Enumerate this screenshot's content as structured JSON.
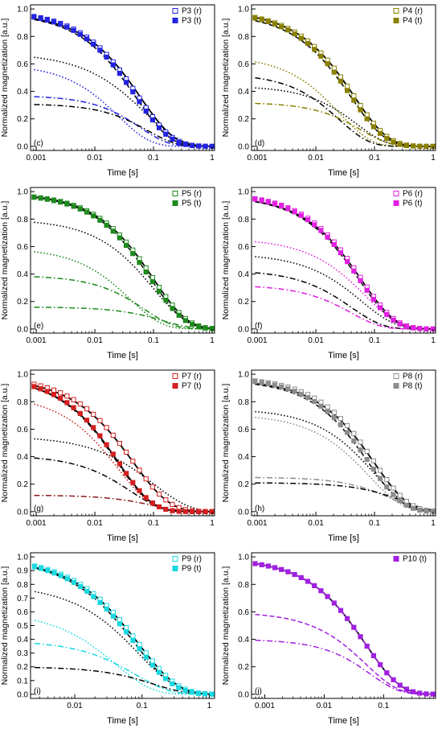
{
  "chart_data": [
    {
      "type": "line",
      "label": "(c)",
      "xlabel": "Time [s]",
      "ylabel": "Normalized magnetization [a.u.]",
      "xscale": "log",
      "xlim": [
        0.0008,
        1.1
      ],
      "ylim": [
        -0.03,
        1.03
      ],
      "xticks": [
        "0.001",
        "0.01",
        "0.1",
        "1"
      ],
      "yticks": [
        "0.0",
        "0.2",
        "0.4",
        "0.6",
        "0.8",
        "1.0"
      ],
      "color": "#2323e0",
      "legend_placement": "top-right",
      "legend": [
        "P3 (r)",
        "P3 (t)"
      ],
      "curves": [
        {
          "style": "solid",
          "color": "#000000",
          "amp": 0.97,
          "tau": 0.06,
          "beta": 0.75
        },
        {
          "style": "dash",
          "color": "#000000",
          "amp": 0.97,
          "tau": 0.05,
          "beta": 0.75
        },
        {
          "style": "dot",
          "color": "#000000",
          "amp": 0.68,
          "tau": 0.07,
          "beta": 0.7
        },
        {
          "style": "dot",
          "color": "#2323e0",
          "amp": 0.6,
          "tau": 0.025,
          "beta": 0.8
        },
        {
          "style": "dashdot",
          "color": "#2323e0",
          "amp": 0.37,
          "tau": 0.06,
          "beta": 0.9
        },
        {
          "style": "dashdot",
          "color": "#000000",
          "amp": 0.31,
          "tau": 0.08,
          "beta": 0.9
        }
      ],
      "series": [
        {
          "name": "P3 (r)",
          "marker": "open-square",
          "amp": 0.99,
          "tau": 0.055,
          "beta": 0.75
        },
        {
          "name": "P3 (t)",
          "marker": "filled-square",
          "amp": 0.99,
          "tau": 0.05,
          "beta": 0.75
        }
      ]
    },
    {
      "type": "line",
      "label": "(d)",
      "xlabel": "Time [s]",
      "ylabel": "Normalized magnetization [a.u.]",
      "xscale": "log",
      "xlim": [
        0.0008,
        1.1
      ],
      "ylim": [
        -0.03,
        1.03
      ],
      "xticks": [
        "0.001",
        "0.01",
        "0.1",
        "1"
      ],
      "yticks": [
        "0.0",
        "0.2",
        "0.4",
        "0.6",
        "0.8",
        "1.0"
      ],
      "color": "#8a8000",
      "legend_placement": "top-right",
      "legend": [
        "P4 (r)",
        "P4 (t)"
      ],
      "curves": [
        {
          "style": "solid",
          "color": "#000000",
          "amp": 0.99,
          "tau": 0.045,
          "beta": 0.75
        },
        {
          "style": "dash",
          "color": "#000000",
          "amp": 0.97,
          "tau": 0.04,
          "beta": 0.75
        },
        {
          "style": "dot",
          "color": "#8a8000",
          "amp": 0.66,
          "tau": 0.025,
          "beta": 0.8
        },
        {
          "style": "dashdot",
          "color": "#000000",
          "amp": 0.53,
          "tau": 0.025,
          "beta": 0.85
        },
        {
          "style": "dot",
          "color": "#000000",
          "amp": 0.44,
          "tau": 0.05,
          "beta": 0.85
        },
        {
          "style": "dashdot",
          "color": "#8a8000",
          "amp": 0.32,
          "tau": 0.06,
          "beta": 0.9
        }
      ],
      "series": [
        {
          "name": "P4 (r)",
          "marker": "open-square",
          "amp": 0.99,
          "tau": 0.045,
          "beta": 0.75
        },
        {
          "name": "P4 (t)",
          "marker": "filled-square",
          "amp": 0.99,
          "tau": 0.04,
          "beta": 0.75
        }
      ]
    },
    {
      "type": "line",
      "label": "(e)",
      "xlabel": "Time [s]",
      "ylabel": "Normalized magnetization [a.u.]",
      "xscale": "log",
      "xlim": [
        0.0008,
        1.1
      ],
      "ylim": [
        -0.03,
        1.03
      ],
      "xticks": [
        "0.001",
        "0.01",
        "0.1",
        "1"
      ],
      "yticks": [
        "0.0",
        "0.2",
        "0.4",
        "0.6",
        "0.8",
        "1.0"
      ],
      "color": "#1e8a1e",
      "legend_placement": "top-right",
      "legend": [
        "P5 (r)",
        "P5 (t)"
      ],
      "curves": [
        {
          "style": "solid",
          "color": "#000000",
          "amp": 0.99,
          "tau": 0.1,
          "beta": 0.75
        },
        {
          "style": "dash",
          "color": "#000000",
          "amp": 0.99,
          "tau": 0.09,
          "beta": 0.75
        },
        {
          "style": "dot",
          "color": "#000000",
          "amp": 0.8,
          "tau": 0.1,
          "beta": 0.75
        },
        {
          "style": "dot",
          "color": "#1e8a1e",
          "amp": 0.59,
          "tau": 0.04,
          "beta": 0.8
        },
        {
          "style": "dashdot",
          "color": "#1e8a1e",
          "amp": 0.39,
          "tau": 0.07,
          "beta": 0.85
        },
        {
          "style": "dashdot",
          "color": "#1e8a1e",
          "amp": 0.16,
          "tau": 0.15,
          "beta": 0.9
        }
      ],
      "series": [
        {
          "name": "P5 (r)",
          "marker": "open-square",
          "amp": 0.99,
          "tau": 0.1,
          "beta": 0.75
        },
        {
          "name": "P5 (t)",
          "marker": "filled-square",
          "amp": 0.99,
          "tau": 0.09,
          "beta": 0.75
        }
      ]
    },
    {
      "type": "line",
      "label": "(f)",
      "xlabel": "Time [s]",
      "ylabel": "Normalized magnetization [a.u.]",
      "xscale": "log",
      "xlim": [
        0.0008,
        1.1
      ],
      "ylim": [
        -0.03,
        1.03
      ],
      "xticks": [
        "0.001",
        "0.01",
        "0.1",
        "1"
      ],
      "yticks": [
        "0.0",
        "0.2",
        "0.4",
        "0.6",
        "0.8",
        "1.0"
      ],
      "color": "#e020e0",
      "legend_placement": "top-right",
      "legend": [
        "P6 (r)",
        "P6 (t)"
      ],
      "curves": [
        {
          "style": "solid",
          "color": "#000000",
          "amp": 0.97,
          "tau": 0.06,
          "beta": 0.75
        },
        {
          "style": "dash",
          "color": "#000000",
          "amp": 0.97,
          "tau": 0.055,
          "beta": 0.75
        },
        {
          "style": "dot",
          "color": "#e020e0",
          "amp": 0.66,
          "tau": 0.07,
          "beta": 0.75
        },
        {
          "style": "dot",
          "color": "#000000",
          "amp": 0.55,
          "tau": 0.06,
          "beta": 0.75
        },
        {
          "style": "dashdot",
          "color": "#000000",
          "amp": 0.43,
          "tau": 0.04,
          "beta": 0.8
        },
        {
          "style": "dashdot",
          "color": "#e020e0",
          "amp": 0.32,
          "tau": 0.04,
          "beta": 0.85
        }
      ],
      "series": [
        {
          "name": "P6 (r)",
          "marker": "open-square",
          "amp": 0.99,
          "tau": 0.06,
          "beta": 0.75
        },
        {
          "name": "P6 (t)",
          "marker": "filled-square",
          "amp": 0.99,
          "tau": 0.055,
          "beta": 0.75
        }
      ]
    },
    {
      "type": "line",
      "label": "(g)",
      "xlabel": "Time [s]",
      "ylabel": "Normalized magnetization [a.u.]",
      "xscale": "log",
      "xlim": [
        0.0008,
        1.1
      ],
      "ylim": [
        -0.03,
        1.03
      ],
      "xticks": [
        "0.001",
        "0.01",
        "0.1",
        "1"
      ],
      "yticks": [
        "0.0",
        "0.2",
        "0.4",
        "0.6",
        "0.8",
        "1.0"
      ],
      "color": "#d42020",
      "legend_placement": "top-right",
      "legend": [
        "P7 (r)",
        "P7 (t)"
      ],
      "curves": [
        {
          "style": "solid",
          "color": "#000000",
          "amp": 0.98,
          "tau": 0.045,
          "beta": 0.7
        },
        {
          "style": "solid",
          "color": "#000000",
          "amp": 0.98,
          "tau": 0.025,
          "beta": 0.75
        },
        {
          "style": "dash",
          "color": "#000000",
          "amp": 0.98,
          "tau": 0.024,
          "beta": 0.75
        },
        {
          "style": "dot",
          "color": "#d42020",
          "amp": 0.85,
          "tau": 0.025,
          "beta": 0.75
        },
        {
          "style": "dot",
          "color": "#000000",
          "amp": 0.55,
          "tau": 0.1,
          "beta": 0.7
        },
        {
          "style": "dashdot",
          "color": "#000000",
          "amp": 0.41,
          "tau": 0.04,
          "beta": 0.8
        },
        {
          "style": "dashdot",
          "color": "#8b1a1a",
          "amp": 0.12,
          "tau": 0.1,
          "beta": 0.9
        }
      ],
      "series": [
        {
          "name": "P7 (r)",
          "marker": "open-square",
          "amp": 0.99,
          "tau": 0.045,
          "beta": 0.7
        },
        {
          "name": "P7 (t)",
          "marker": "filled-square",
          "amp": 0.99,
          "tau": 0.025,
          "beta": 0.75
        }
      ]
    },
    {
      "type": "line",
      "label": "(h)",
      "xlabel": "Time [s]",
      "ylabel": "Normalized magnetization [a.u.]",
      "xscale": "log",
      "xlim": [
        0.0008,
        1.1
      ],
      "ylim": [
        -0.03,
        1.03
      ],
      "xticks": [
        "0.001",
        "0.01",
        "0.1",
        "1"
      ],
      "yticks": [
        "0.0",
        "0.2",
        "0.4",
        "0.6",
        "0.8",
        "1.0"
      ],
      "color": "#8c8c8c",
      "legend_placement": "top-right",
      "legend": [
        "P8 (r)",
        "P8 (t)"
      ],
      "curves": [
        {
          "style": "solid",
          "color": "#000000",
          "amp": 0.96,
          "tau": 0.1,
          "beta": 0.75
        },
        {
          "style": "dash",
          "color": "#000000",
          "amp": 0.96,
          "tau": 0.08,
          "beta": 0.75
        },
        {
          "style": "dot",
          "color": "#000000",
          "amp": 0.75,
          "tau": 0.1,
          "beta": 0.75
        },
        {
          "style": "dot",
          "color": "#8c8c8c",
          "amp": 0.71,
          "tau": 0.08,
          "beta": 0.75
        },
        {
          "style": "dashdot",
          "color": "#8c8c8c",
          "amp": 0.25,
          "tau": 0.2,
          "beta": 0.9
        },
        {
          "style": "dashdot",
          "color": "#000000",
          "amp": 0.21,
          "tau": 0.3,
          "beta": 0.9
        }
      ],
      "series": [
        {
          "name": "P8 (r)",
          "marker": "open-square",
          "amp": 0.98,
          "tau": 0.1,
          "beta": 0.75
        },
        {
          "name": "P8 (t)",
          "marker": "filled-square",
          "amp": 0.98,
          "tau": 0.08,
          "beta": 0.75
        }
      ]
    },
    {
      "type": "line",
      "label": "(i)",
      "xlabel": "Time [s]",
      "ylabel": "Normalized magnetization [a.u.]",
      "xscale": "log",
      "xlim": [
        0.0022,
        1.2
      ],
      "ylim": [
        -0.03,
        1.03
      ],
      "xticks": [
        "0.01",
        "0.1",
        "1"
      ],
      "yticks": [
        "0.0",
        "0.1",
        "0.2",
        "0.3",
        "0.4",
        "0.5",
        "0.6",
        "0.7",
        "0.8",
        "0.9",
        "1.0"
      ],
      "color": "#18d8e0",
      "legend_placement": "top-right",
      "legend": [
        "P9 (r)",
        "P9 (t)"
      ],
      "curves": [
        {
          "style": "solid",
          "color": "#000000",
          "amp": 0.99,
          "tau": 0.09,
          "beta": 0.75
        },
        {
          "style": "dash",
          "color": "#000000",
          "amp": 0.99,
          "tau": 0.08,
          "beta": 0.75
        },
        {
          "style": "dot",
          "color": "#000000",
          "amp": 0.8,
          "tau": 0.09,
          "beta": 0.75
        },
        {
          "style": "dot",
          "color": "#18d8e0",
          "amp": 0.6,
          "tau": 0.04,
          "beta": 0.8
        },
        {
          "style": "dashdot",
          "color": "#18d8e0",
          "amp": 0.39,
          "tau": 0.08,
          "beta": 0.85
        },
        {
          "style": "dashdot",
          "color": "#000000",
          "amp": 0.2,
          "tau": 0.15,
          "beta": 0.9
        }
      ],
      "series": [
        {
          "name": "P9 (r)",
          "marker": "open-square",
          "amp": 1.0,
          "tau": 0.09,
          "beta": 0.75
        },
        {
          "name": "P9 (t)",
          "marker": "filled-square",
          "amp": 1.0,
          "tau": 0.08,
          "beta": 0.75
        }
      ]
    },
    {
      "type": "line",
      "label": "(j)",
      "xlabel": "Time [s]",
      "ylabel": "Normalized magnetization [a.u.]",
      "xscale": "log",
      "xlim": [
        0.0006,
        0.75
      ],
      "ylim": [
        -0.03,
        1.03
      ],
      "xticks": [
        "0.001",
        "0.01",
        "0.1"
      ],
      "yticks": [
        "0.0",
        "0.2",
        "0.4",
        "0.6",
        "0.8",
        "1.0"
      ],
      "color": "#a020e0",
      "legend_placement": "top-right",
      "legend": [
        "P10 (t)"
      ],
      "curves": [
        {
          "style": "solid",
          "color": "#000000",
          "amp": 0.99,
          "tau": 0.05,
          "beta": 0.75
        },
        {
          "style": "dash",
          "color": "#a020e0",
          "amp": 0.99,
          "tau": 0.05,
          "beta": 0.75
        },
        {
          "style": "dash",
          "color": "#a020e0",
          "amp": 0.6,
          "tau": 0.05,
          "beta": 0.8
        },
        {
          "style": "dashdot",
          "color": "#a020e0",
          "amp": 0.4,
          "tau": 0.06,
          "beta": 0.9
        }
      ],
      "series": [
        {
          "name": "P10 (t)",
          "marker": "filled-square",
          "amp": 0.99,
          "tau": 0.05,
          "beta": 0.75
        }
      ]
    }
  ]
}
